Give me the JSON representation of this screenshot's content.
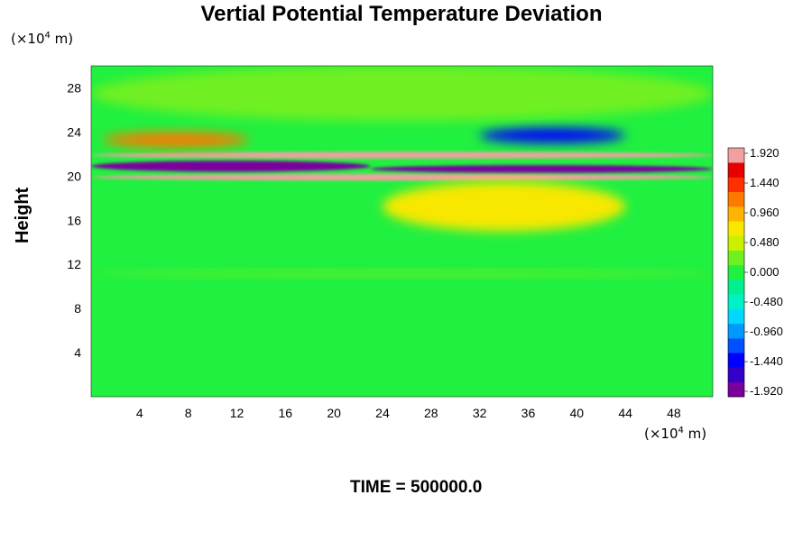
{
  "chart_data": {
    "type": "heatmap",
    "title": "Vertial Potential Temperature Deviation",
    "ylabel": "Height",
    "x_unit": {
      "prefix": "(×10",
      "exp": "4",
      "suffix": " m)"
    },
    "y_unit": {
      "prefix": "(×10",
      "exp": "4",
      "suffix": " m)"
    },
    "xlim": [
      0,
      51.2
    ],
    "ylim": [
      0,
      30
    ],
    "x_ticks": [
      4,
      8,
      12,
      16,
      20,
      24,
      28,
      32,
      36,
      40,
      44,
      48
    ],
    "y_ticks": [
      4,
      8,
      12,
      16,
      20,
      24,
      28
    ],
    "colorbar": {
      "min": -1.92,
      "max": 1.92,
      "levels": 17,
      "labels": [
        "1.920",
        "1.440",
        "0.960",
        "0.480",
        "0.000",
        "-0.480",
        "-0.960",
        "-1.440",
        "-1.920"
      ],
      "colors": [
        "#7a009e",
        "#3200c8",
        "#0000ff",
        "#0050ff",
        "#0099ff",
        "#00d8ff",
        "#00f0c8",
        "#00f090",
        "#20f040",
        "#70f020",
        "#c8f000",
        "#f8e800",
        "#ffb400",
        "#ff7800",
        "#ff3000",
        "#e80000",
        "#f0a0a0"
      ]
    },
    "features": [
      {
        "x": [
          0,
          51.2
        ],
        "y": [
          21.6,
          22.2
        ],
        "value": 1.92
      },
      {
        "x": [
          0,
          51.2
        ],
        "y": [
          19.6,
          20.2
        ],
        "value": 1.92
      },
      {
        "x": [
          0,
          23
        ],
        "y": [
          20.4,
          21.4
        ],
        "value": -1.92
      },
      {
        "x": [
          23,
          51.2
        ],
        "y": [
          20.3,
          21.0
        ],
        "value": -1.92
      },
      {
        "x": [
          1,
          13
        ],
        "y": [
          22.6,
          24.0
        ],
        "value": 1.3
      },
      {
        "x": [
          32,
          44
        ],
        "y": [
          23.0,
          24.4
        ],
        "value": -1.4
      },
      {
        "x": [
          24,
          44
        ],
        "y": [
          15.0,
          19.5
        ],
        "value": 0.8
      },
      {
        "x": [
          0,
          51.2
        ],
        "y": [
          10.9,
          11.4
        ],
        "value": 0.3
      },
      {
        "x": [
          0,
          51.2
        ],
        "y": [
          25.0,
          30.0
        ],
        "value": 0.2
      }
    ],
    "time_label": "TIME = 500000.0",
    "grid": false
  }
}
